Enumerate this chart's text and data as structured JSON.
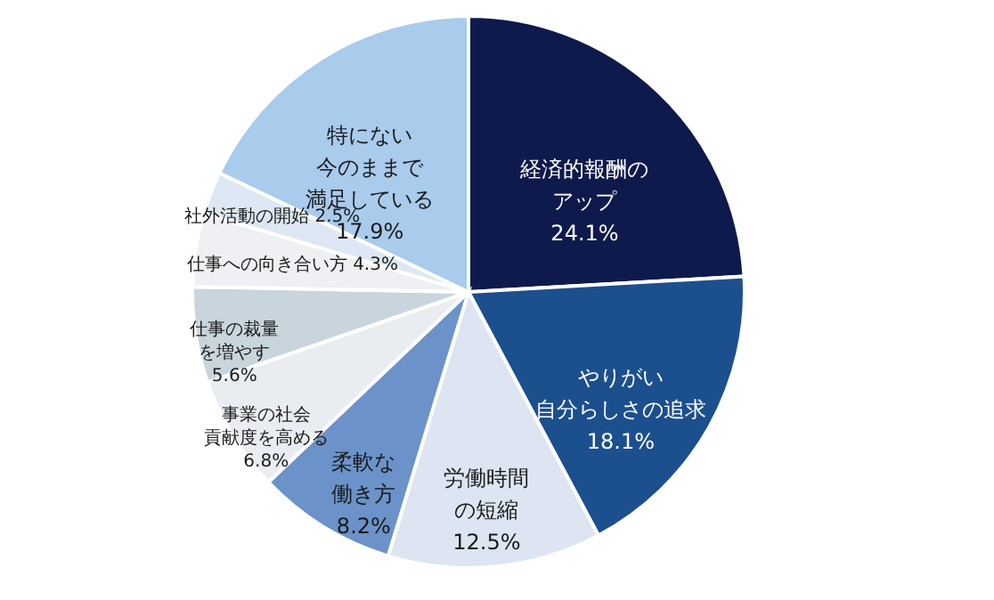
{
  "chart_data": {
    "type": "pie",
    "categories": [
      "経済的報酬のアップ",
      "やりがい自分らしさの追求",
      "労働時間の短縮",
      "柔軟な働き方",
      "事業の社会貢献度を高める",
      "仕事の裁量を増やす",
      "仕事への向き合い方",
      "社外活動の開始",
      "特にない今のままで満足している"
    ],
    "values": [
      24.1,
      18.1,
      12.5,
      8.2,
      6.8,
      5.6,
      4.3,
      2.5,
      17.9
    ],
    "value_labels": [
      "24.1%",
      "18.1%",
      "12.5%",
      "8.2%",
      "6.8%",
      "5.6%",
      "4.3%",
      "2.5%",
      "17.9%"
    ],
    "colors": [
      "#0e1a4c",
      "#1c4f8e",
      "#dce5f1",
      "#6b93c9",
      "#e9edf1",
      "#c8d5dd",
      "#eef0f3",
      "#dde8f4",
      "#a9cbec"
    ],
    "legend": false
  }
}
